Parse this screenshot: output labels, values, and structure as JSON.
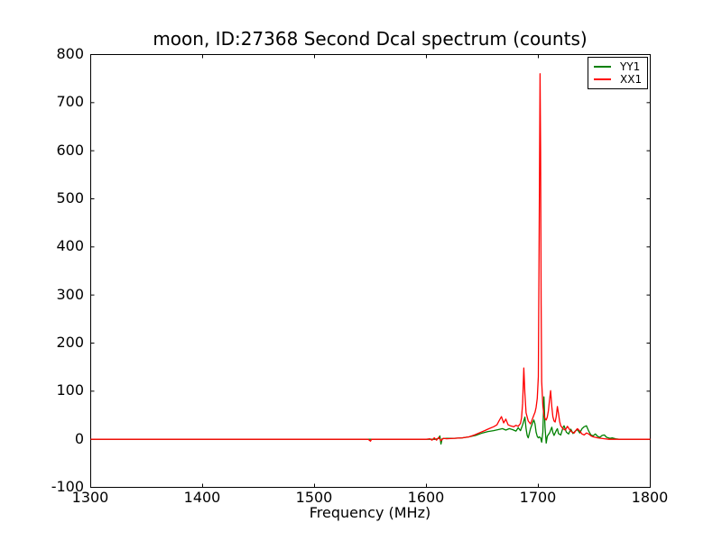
{
  "title": "moon, ID:27368 Second Dcal spectrum (counts)",
  "axes": {
    "xlabel": "Frequency (MHz)",
    "x_ticks": [
      1300,
      1400,
      1500,
      1600,
      1700,
      1800
    ],
    "y_ticks": [
      800,
      700,
      600,
      500,
      400,
      300,
      200,
      100,
      0,
      -100
    ],
    "spine_color": "#000000",
    "tick_length": 4
  },
  "legend": {
    "entries": [
      {
        "label": "YY1",
        "color": "#008000"
      },
      {
        "label": "XX1",
        "color": "#ff0000"
      }
    ]
  },
  "chart_data": {
    "type": "line",
    "title": "moon, ID:27368 Second Dcal spectrum (counts)",
    "xlabel": "Frequency (MHz)",
    "ylabel": "",
    "xlim": [
      1300,
      1800
    ],
    "ylim": [
      -100,
      800
    ],
    "grid": false,
    "legend_position": "upper right",
    "series": [
      {
        "name": "YY1",
        "color": "#008000",
        "points": [
          [
            1300,
            0
          ],
          [
            1350,
            0
          ],
          [
            1400,
            0
          ],
          [
            1450,
            0
          ],
          [
            1500,
            0
          ],
          [
            1550,
            0
          ],
          [
            1600,
            0
          ],
          [
            1608,
            0
          ],
          [
            1611,
            2
          ],
          [
            1612,
            7
          ],
          [
            1613,
            -10
          ],
          [
            1614,
            1
          ],
          [
            1618,
            2
          ],
          [
            1625,
            2
          ],
          [
            1632,
            3
          ],
          [
            1638,
            5
          ],
          [
            1644,
            8
          ],
          [
            1650,
            13
          ],
          [
            1655,
            16
          ],
          [
            1660,
            18
          ],
          [
            1664,
            20
          ],
          [
            1668,
            22
          ],
          [
            1671,
            19
          ],
          [
            1674,
            22
          ],
          [
            1677,
            20
          ],
          [
            1680,
            17
          ],
          [
            1682,
            24
          ],
          [
            1684,
            18
          ],
          [
            1686,
            30
          ],
          [
            1688,
            46
          ],
          [
            1689,
            22
          ],
          [
            1690,
            8
          ],
          [
            1691,
            3
          ],
          [
            1693,
            22
          ],
          [
            1695,
            35
          ],
          [
            1696,
            40
          ],
          [
            1697,
            32
          ],
          [
            1698,
            15
          ],
          [
            1699,
            6
          ],
          [
            1700,
            3
          ],
          [
            1701,
            5
          ],
          [
            1702,
            3
          ],
          [
            1703,
            -6
          ],
          [
            1704,
            15
          ],
          [
            1705,
            88
          ],
          [
            1706,
            25
          ],
          [
            1707,
            -8
          ],
          [
            1708,
            6
          ],
          [
            1709,
            10
          ],
          [
            1710,
            13
          ],
          [
            1712,
            25
          ],
          [
            1713,
            14
          ],
          [
            1714,
            8
          ],
          [
            1716,
            18
          ],
          [
            1717,
            22
          ],
          [
            1718,
            12
          ],
          [
            1720,
            9
          ],
          [
            1722,
            24
          ],
          [
            1723,
            28
          ],
          [
            1725,
            15
          ],
          [
            1727,
            11
          ],
          [
            1729,
            21
          ],
          [
            1731,
            12
          ],
          [
            1733,
            17
          ],
          [
            1735,
            20
          ],
          [
            1737,
            13
          ],
          [
            1739,
            22
          ],
          [
            1741,
            26
          ],
          [
            1743,
            28
          ],
          [
            1745,
            17
          ],
          [
            1747,
            9
          ],
          [
            1749,
            7
          ],
          [
            1751,
            11
          ],
          [
            1753,
            6
          ],
          [
            1755,
            4
          ],
          [
            1757,
            8
          ],
          [
            1759,
            9
          ],
          [
            1761,
            4
          ],
          [
            1764,
            2
          ],
          [
            1766,
            3
          ],
          [
            1769,
            1
          ],
          [
            1772,
            0
          ],
          [
            1780,
            0
          ],
          [
            1790,
            0
          ],
          [
            1800,
            0
          ]
        ]
      },
      {
        "name": "XX1",
        "color": "#ff0000",
        "points": [
          [
            1300,
            0
          ],
          [
            1350,
            0
          ],
          [
            1400,
            0
          ],
          [
            1450,
            0
          ],
          [
            1500,
            0
          ],
          [
            1548,
            0
          ],
          [
            1550,
            -4
          ],
          [
            1551,
            0
          ],
          [
            1575,
            0
          ],
          [
            1600,
            0
          ],
          [
            1603,
            1
          ],
          [
            1605,
            -2
          ],
          [
            1607,
            3
          ],
          [
            1609,
            -2
          ],
          [
            1611,
            4
          ],
          [
            1613,
            -3
          ],
          [
            1615,
            2
          ],
          [
            1618,
            1
          ],
          [
            1625,
            2
          ],
          [
            1632,
            3
          ],
          [
            1638,
            5
          ],
          [
            1643,
            9
          ],
          [
            1648,
            14
          ],
          [
            1652,
            18
          ],
          [
            1656,
            22
          ],
          [
            1660,
            26
          ],
          [
            1663,
            30
          ],
          [
            1665,
            39
          ],
          [
            1667,
            47
          ],
          [
            1669,
            34
          ],
          [
            1671,
            42
          ],
          [
            1673,
            30
          ],
          [
            1675,
            28
          ],
          [
            1678,
            26
          ],
          [
            1680,
            29
          ],
          [
            1682,
            27
          ],
          [
            1684,
            33
          ],
          [
            1685,
            45
          ],
          [
            1686,
            75
          ],
          [
            1687,
            148
          ],
          [
            1688,
            95
          ],
          [
            1689,
            55
          ],
          [
            1691,
            38
          ],
          [
            1693,
            32
          ],
          [
            1694,
            38
          ],
          [
            1695,
            44
          ],
          [
            1696,
            50
          ],
          [
            1697,
            56
          ],
          [
            1698,
            66
          ],
          [
            1699,
            85
          ],
          [
            1700,
            130
          ],
          [
            1701,
            520
          ],
          [
            1701.5,
            760
          ],
          [
            1702,
            600
          ],
          [
            1702.5,
            280
          ],
          [
            1703,
            120
          ],
          [
            1704,
            70
          ],
          [
            1705,
            50
          ],
          [
            1706,
            43
          ],
          [
            1707,
            40
          ],
          [
            1708,
            46
          ],
          [
            1709,
            60
          ],
          [
            1710,
            82
          ],
          [
            1711,
            101
          ],
          [
            1712,
            68
          ],
          [
            1713,
            47
          ],
          [
            1714,
            38
          ],
          [
            1715,
            36
          ],
          [
            1716,
            47
          ],
          [
            1717,
            68
          ],
          [
            1718,
            54
          ],
          [
            1719,
            37
          ],
          [
            1720,
            28
          ],
          [
            1722,
            22
          ],
          [
            1724,
            19
          ],
          [
            1726,
            27
          ],
          [
            1728,
            20
          ],
          [
            1730,
            15
          ],
          [
            1732,
            13
          ],
          [
            1734,
            20
          ],
          [
            1735,
            22
          ],
          [
            1737,
            17
          ],
          [
            1739,
            11
          ],
          [
            1741,
            9
          ],
          [
            1743,
            13
          ],
          [
            1745,
            11
          ],
          [
            1747,
            7
          ],
          [
            1749,
            5
          ],
          [
            1751,
            4
          ],
          [
            1753,
            3
          ],
          [
            1756,
            2
          ],
          [
            1759,
            1
          ],
          [
            1763,
            0
          ],
          [
            1770,
            0
          ],
          [
            1780,
            0
          ],
          [
            1790,
            0
          ],
          [
            1800,
            0
          ]
        ]
      }
    ]
  }
}
